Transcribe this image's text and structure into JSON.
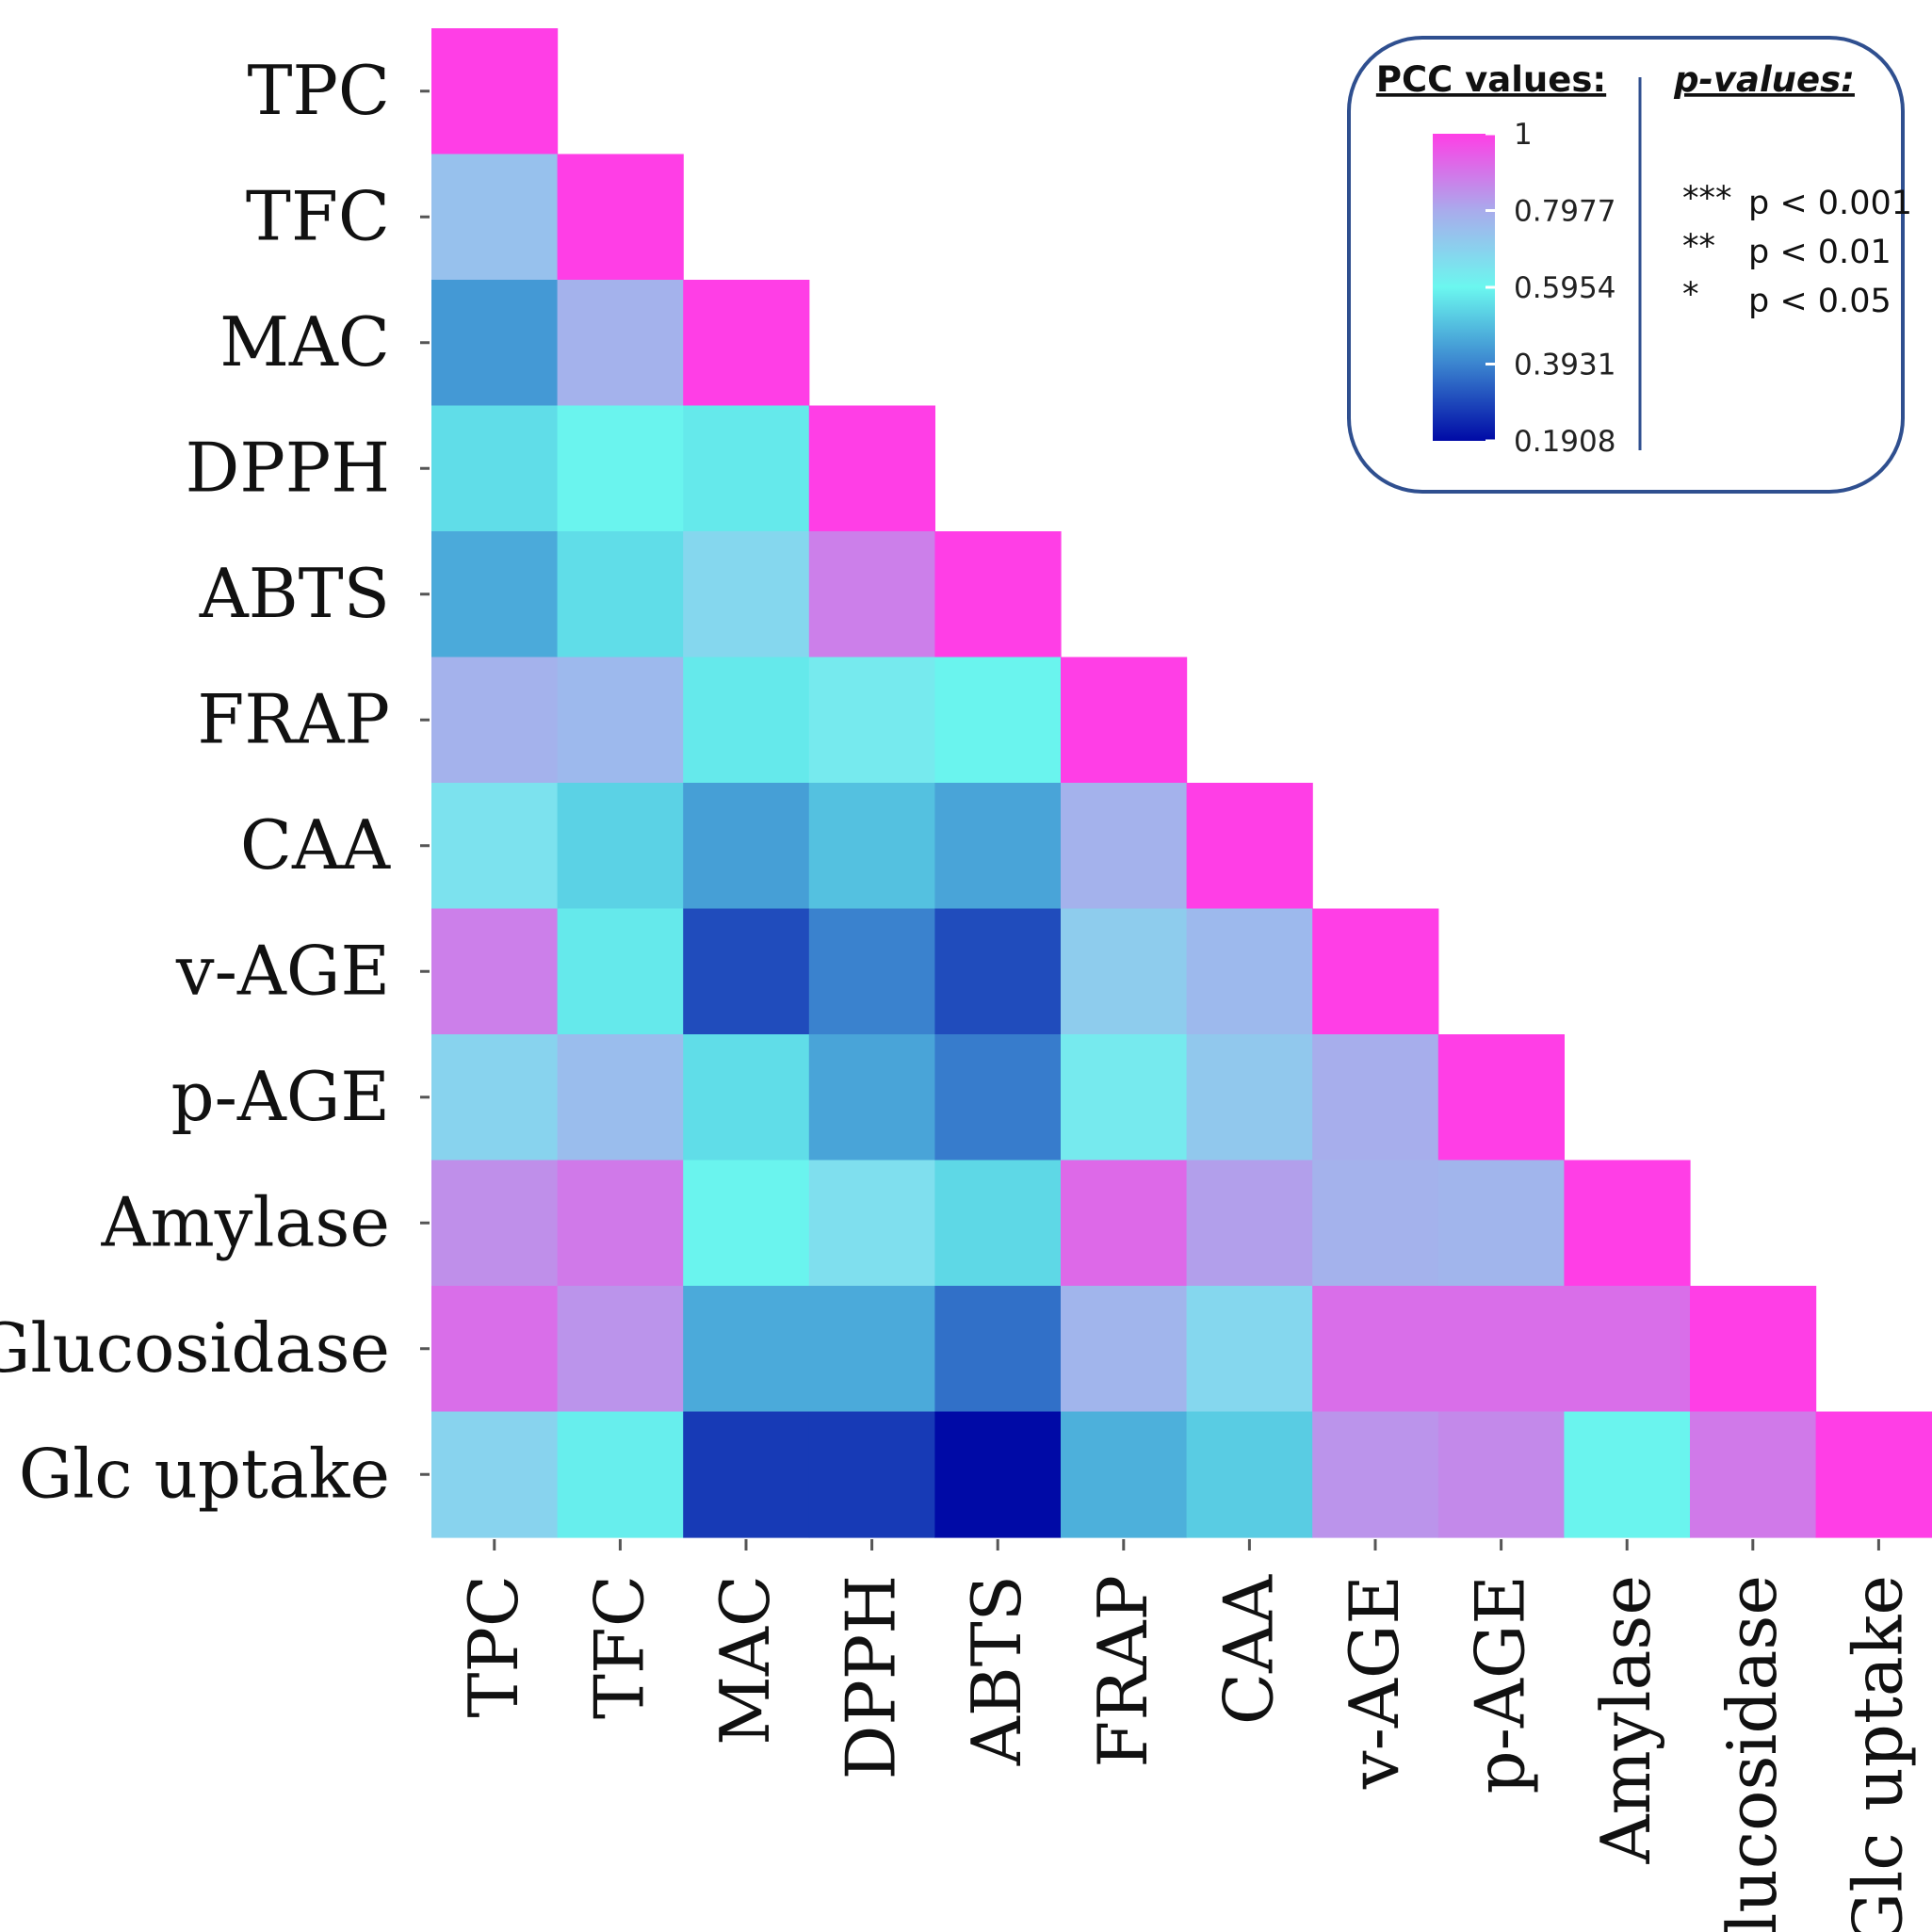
{
  "chart_data": {
    "type": "heatmap",
    "title": "",
    "xlabel": "",
    "ylabel": "",
    "variables": [
      "TPC",
      "TFC",
      "MAC",
      "DPPH",
      "ABTS",
      "FRAP",
      "CAA",
      "v-AGE",
      "p-AGE",
      "Amylase",
      "Glucosidase",
      "Glc uptake"
    ],
    "layout": "lower-triangle",
    "matrix": [
      [
        1.0
      ],
      [
        0.74,
        1.0
      ],
      [
        0.43,
        0.78,
        1.0
      ],
      [
        0.55,
        0.59,
        0.57,
        1.0
      ],
      [
        0.46,
        0.55,
        0.68,
        0.88,
        1.0
      ],
      [
        0.78,
        0.76,
        0.57,
        0.63,
        0.59,
        1.0
      ],
      [
        0.65,
        0.53,
        0.44,
        0.5,
        0.45,
        0.78,
        1.0
      ],
      [
        0.88,
        0.57,
        0.3,
        0.39,
        0.3,
        0.71,
        0.76,
        1.0
      ],
      [
        0.69,
        0.75,
        0.55,
        0.45,
        0.38,
        0.63,
        0.72,
        0.79,
        1.0
      ],
      [
        0.85,
        0.89,
        0.59,
        0.66,
        0.54,
        0.92,
        0.82,
        0.78,
        0.77,
        1.0
      ],
      [
        0.91,
        0.84,
        0.46,
        0.46,
        0.36,
        0.77,
        0.68,
        0.91,
        0.91,
        0.91,
        1.0
      ],
      [
        0.69,
        0.58,
        0.27,
        0.27,
        0.19,
        0.47,
        0.52,
        0.84,
        0.86,
        0.59,
        0.89,
        1.0
      ]
    ],
    "colorscale": {
      "min": 0.1908,
      "max": 1,
      "ticks": [
        1,
        0.7977,
        0.5954,
        0.3931,
        0.1908
      ],
      "tick_labels": [
        "1",
        "0.7977",
        "0.5954",
        "0.3931",
        "0.1908"
      ],
      "stops": [
        {
          "value": 0.1908,
          "color": "#000aa6"
        },
        {
          "value": 0.3931,
          "color": "#3b84cf"
        },
        {
          "value": 0.5954,
          "color": "#6bf7ef"
        },
        {
          "value": 0.7977,
          "color": "#a9abec"
        },
        {
          "value": 1.0,
          "color": "#ff3ee6"
        }
      ],
      "title": "PCC values:"
    },
    "legend_placement": "top-right"
  },
  "pvalues_legend": {
    "title": "p-values:",
    "entries": [
      {
        "stars": "***",
        "text": "p < 0.001"
      },
      {
        "stars": "**",
        "text": "p < 0.01"
      },
      {
        "stars": "*",
        "text": "p < 0.05"
      }
    ]
  },
  "colors": {
    "legend_border": "#2f4f8f",
    "text": "#111111"
  }
}
